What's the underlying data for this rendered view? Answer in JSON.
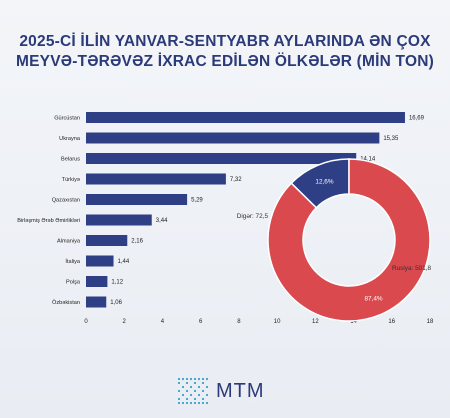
{
  "title_line1": "2025-Cİ İLİN YANVAR-SENTYABR AYLARINDA ƏN ÇOX",
  "title_line2": "MEYVƏ-TƏRƏVƏZ İXRAC EDİLƏN ÖLKƏLƏR (MİN TON)",
  "logo_text": "MTM",
  "colors": {
    "bar": "#2f3f86",
    "donut_other": "#2f3f86",
    "donut_russia": "#d9494e",
    "title": "#2b3a78"
  },
  "chart_data": [
    {
      "type": "bar",
      "orientation": "horizontal",
      "categories": [
        "Gürcüstan",
        "Ukrayna",
        "Belarus",
        "Türkiyə",
        "Qazaxıstan",
        "Birləşmiş Ərəb Əmirlikləri",
        "Almaniya",
        "İtaliya",
        "Polşa",
        "Özbəkistan"
      ],
      "values": [
        16.69,
        15.35,
        14.14,
        7.32,
        5.29,
        3.44,
        2.16,
        1.44,
        1.12,
        1.06
      ],
      "value_labels": [
        "16,69",
        "15,35",
        "14,14",
        "7,32",
        "5,29",
        "3,44",
        "2,16",
        "1,44",
        "1,12",
        "1,06"
      ],
      "xlim": [
        0,
        18
      ],
      "xticks": [
        "0",
        "2",
        "4",
        "6",
        "8",
        "10",
        "12",
        "14",
        "16",
        "18"
      ],
      "grid": false
    },
    {
      "type": "pie",
      "donut": true,
      "slices": [
        {
          "label": "Digər: 72,5",
          "value": 72.5,
          "percent_label": "12,6%"
        },
        {
          "label": "Rusiya: 501,8",
          "value": 501.8,
          "percent_label": "87,4%"
        }
      ]
    }
  ]
}
